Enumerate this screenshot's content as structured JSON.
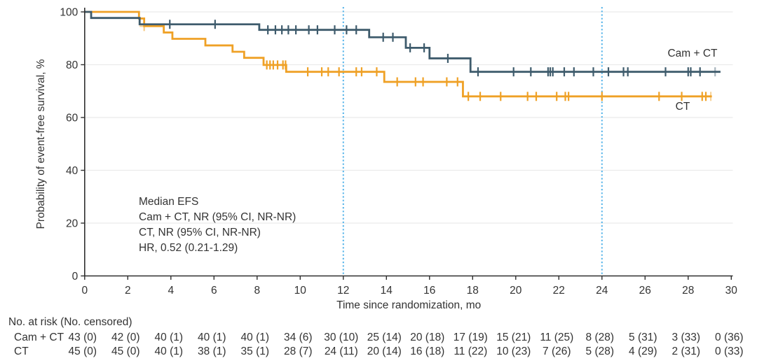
{
  "chart_data": {
    "type": "line",
    "subtype": "kaplan-meier-step",
    "title": "",
    "xlabel": "Time since randomization, mo",
    "ylabel": "Probability of event-free survival, %",
    "xlim": [
      0,
      30
    ],
    "ylim": [
      0,
      100
    ],
    "x_ticks": [
      0,
      2,
      4,
      6,
      8,
      10,
      12,
      14,
      16,
      18,
      20,
      22,
      24,
      26,
      28,
      30
    ],
    "y_ticks": [
      0,
      20,
      40,
      60,
      80,
      100
    ],
    "grid": "horizontal",
    "reference_lines": {
      "x": [
        12,
        24
      ],
      "style": "dotted",
      "color": "#56b4e9"
    },
    "series": [
      {
        "name": "Cam + CT",
        "color": "#3e5b6c",
        "steps": [
          [
            0,
            100
          ],
          [
            0.3,
            97.7
          ],
          [
            2.55,
            95.3
          ],
          [
            8.1,
            93.2
          ],
          [
            13.2,
            90.4
          ],
          [
            14.9,
            86.4
          ],
          [
            16.0,
            82.4
          ],
          [
            17.9,
            77.3
          ]
        ],
        "end_x": 29.5,
        "censor_x": [
          3.95,
          6.05,
          8.5,
          8.85,
          9.15,
          9.45,
          9.8,
          10.4,
          10.8,
          11.6,
          12.15,
          12.6,
          13.85,
          14.3,
          15.1,
          15.75,
          16.85,
          18.25,
          19.9,
          20.7,
          21.5,
          21.6,
          21.72,
          22.25,
          22.7,
          23.6,
          24.3,
          25.0,
          25.2,
          26.95,
          28.0,
          28.12,
          28.55
        ],
        "censor_light_x": [
          29.25
        ]
      },
      {
        "name": "CT",
        "color": "#efa126",
        "steps": [
          [
            0,
            100
          ],
          [
            2.52,
            97.5
          ],
          [
            2.76,
            94.6
          ],
          [
            3.67,
            92.2
          ],
          [
            4.07,
            89.8
          ],
          [
            5.6,
            87.3
          ],
          [
            6.86,
            84.9
          ],
          [
            7.4,
            82.6
          ],
          [
            8.3,
            79.9
          ],
          [
            9.35,
            77.3
          ],
          [
            13.9,
            73.5
          ],
          [
            17.55,
            68.0
          ]
        ],
        "end_x": 29.1,
        "censor_x": [
          8.45,
          8.6,
          8.75,
          8.95,
          9.2,
          9.32,
          10.35,
          11.0,
          11.3,
          11.8,
          12.6,
          12.85,
          13.55,
          14.5,
          15.35,
          15.7,
          16.8,
          17.3,
          17.8,
          18.35,
          19.3,
          20.55,
          20.95,
          21.9,
          22.3,
          22.45,
          24.0,
          26.65,
          27.7,
          28.65,
          28.82
        ],
        "censor_plus_x": [
          2.76
        ],
        "censor_light_x": [
          29.05
        ]
      }
    ],
    "annotation": {
      "lines": [
        "Median EFS",
        "Cam + CT, NR (95% CI, NR-NR)",
        "CT, NR (95% CI, NR-NR)",
        "HR, 0.52 (0.21-1.29)"
      ]
    },
    "legend_position": "end-of-curve"
  },
  "risk_table": {
    "header": "No. at risk (No. censored)",
    "time_points": [
      0,
      2,
      4,
      6,
      8,
      10,
      12,
      14,
      16,
      18,
      20,
      22,
      24,
      26,
      28,
      30
    ],
    "rows": [
      {
        "label": "Cam + CT",
        "values": [
          "43 (0)",
          "42 (0)",
          "40 (1)",
          "40 (1)",
          "40 (1)",
          "34 (6)",
          "30 (10)",
          "25 (14)",
          "20 (18)",
          "17 (19)",
          "15 (21)",
          "11 (25)",
          "8 (28)",
          "5 (31)",
          "3 (33)",
          "0 (36)"
        ]
      },
      {
        "label": "CT",
        "values": [
          "45 (0)",
          "45 (0)",
          "40 (1)",
          "38 (1)",
          "35 (1)",
          "28 (7)",
          "24 (11)",
          "20 (14)",
          "16 (18)",
          "11 (22)",
          "10 (23)",
          "7 (26)",
          "5 (28)",
          "4 (29)",
          "2 (31)",
          "0 (33)"
        ]
      }
    ]
  },
  "colors": {
    "cam_ct": "#3e5b6c",
    "ct": "#efa126",
    "reference_line": "#56b4e9",
    "grid": "#ebebeb",
    "axis": "#2f2f2f",
    "text": "#333333"
  }
}
